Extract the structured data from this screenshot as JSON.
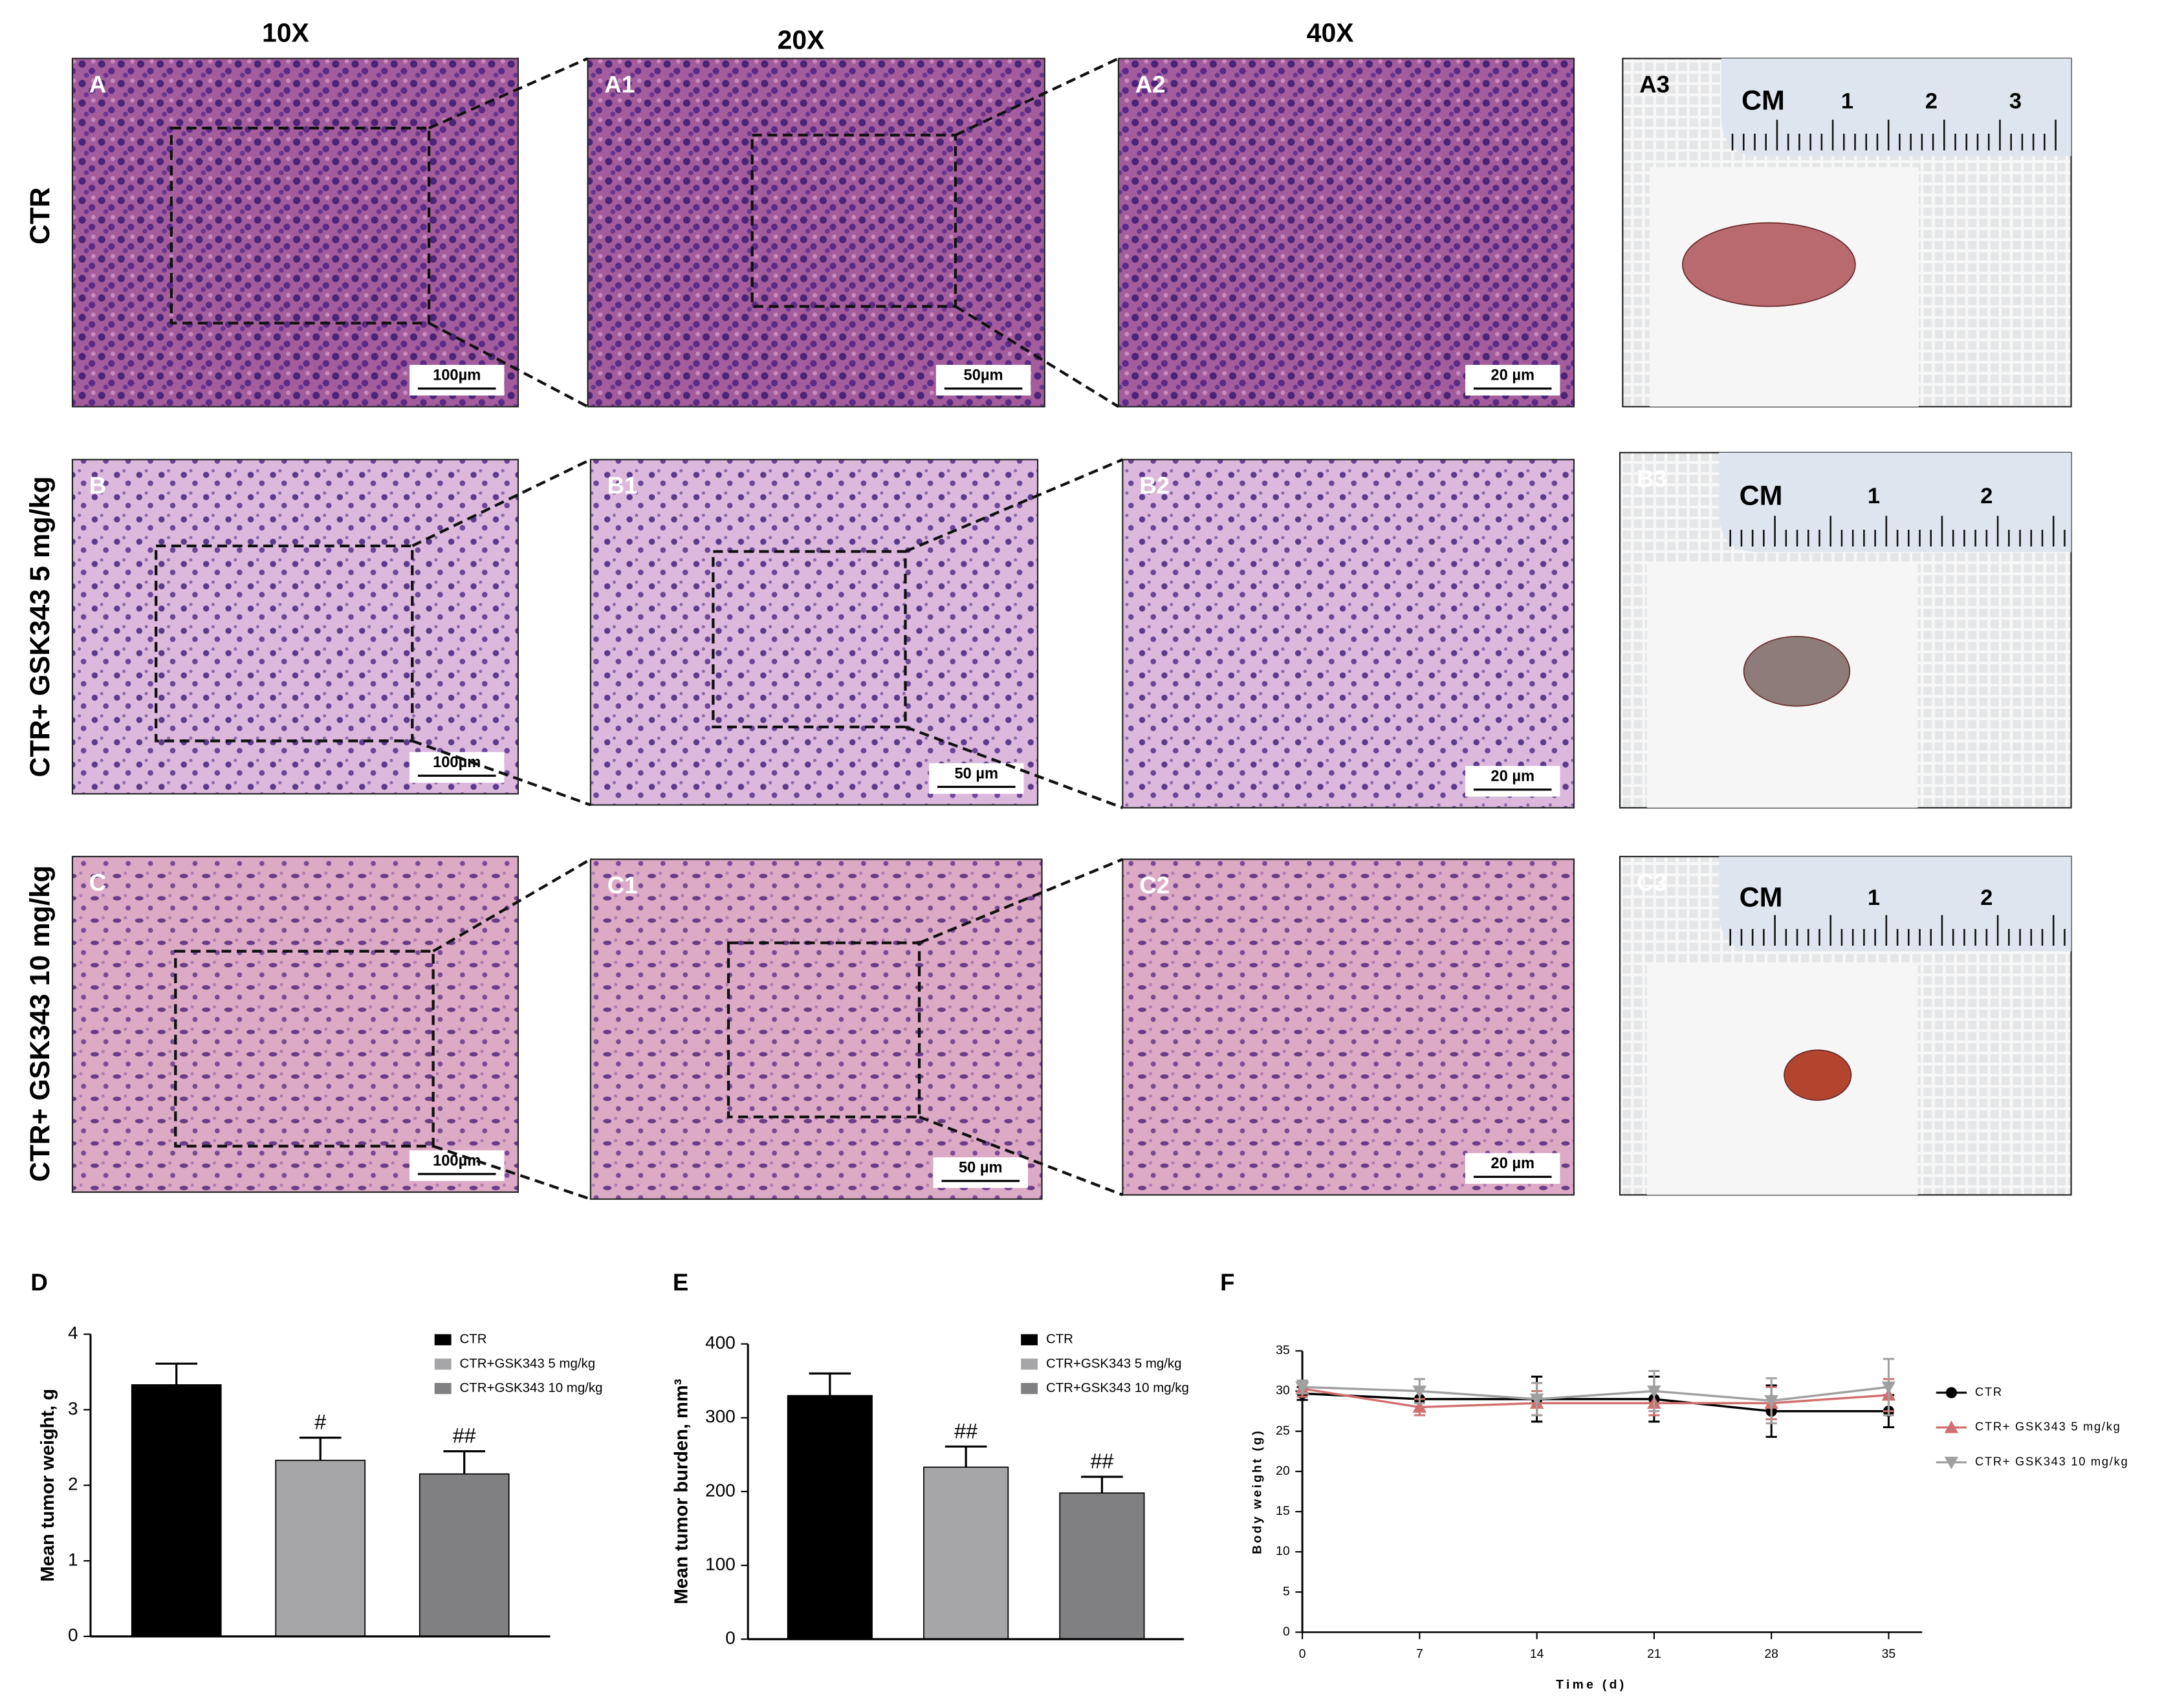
{
  "figure": {
    "column_headers": [
      "10X",
      "20X",
      "40X"
    ],
    "row_labels": [
      "CTR",
      "CTR+ GSK343 5 mg/kg",
      "CTR+ GSK343 10 mg/kg"
    ],
    "panels": [
      {
        "label": "A",
        "scale_bar": "100µm"
      },
      {
        "label": "A1",
        "scale_bar": "50µm"
      },
      {
        "label": "A2",
        "scale_bar": "20 µm"
      },
      {
        "label": "A3",
        "ruler": [
          "CM",
          "1",
          "2",
          "3"
        ]
      },
      {
        "label": "B",
        "scale_bar": "100µm"
      },
      {
        "label": "B1",
        "scale_bar": "50 µm"
      },
      {
        "label": "B2",
        "scale_bar": "20 µm"
      },
      {
        "label": "B3",
        "ruler": [
          "CM",
          "1",
          "2"
        ]
      },
      {
        "label": "C",
        "scale_bar": "100µm"
      },
      {
        "label": "C1",
        "scale_bar": "50 µm"
      },
      {
        "label": "C2",
        "scale_bar": "20 µm"
      },
      {
        "label": "C3",
        "ruler": [
          "CM",
          "1",
          "2"
        ]
      }
    ],
    "chart_letters": [
      "D",
      "E",
      "F"
    ]
  },
  "chart_data": [
    {
      "type": "bar",
      "y_label": "Mean tumor weight, g",
      "ylim": [
        0,
        4
      ],
      "yticks": [
        0,
        1,
        2,
        3,
        4
      ],
      "series": [
        {
          "name": "CTR",
          "color": "#000000",
          "values": [
            3.33
          ],
          "errors": [
            0.28
          ]
        },
        {
          "name": "CTR+GSK343  5 mg/kg",
          "color": "#a6a6a8",
          "values": [
            2.33
          ],
          "errors": [
            0.3
          ],
          "annotation": "#"
        },
        {
          "name": "CTR+GSK343 10 mg/kg",
          "color": "#808082",
          "values": [
            2.15
          ],
          "errors": [
            0.3
          ],
          "annotation": "##"
        }
      ]
    },
    {
      "type": "bar",
      "y_label": "Mean tumor burden, mm³",
      "ylim": [
        0,
        400
      ],
      "yticks": [
        0,
        100,
        200,
        300,
        400
      ],
      "series": [
        {
          "name": "CTR",
          "color": "#000000",
          "values": [
            330
          ],
          "errors": [
            30
          ]
        },
        {
          "name": "CTR+GSK343  5 mg/kg",
          "color": "#a6a6a8",
          "values": [
            233
          ],
          "errors": [
            28
          ],
          "annotation": "##"
        },
        {
          "name": "CTR+GSK343 10 mg/kg",
          "color": "#808082",
          "values": [
            198
          ],
          "errors": [
            22
          ],
          "annotation": "##"
        }
      ]
    },
    {
      "type": "line",
      "x_label": "Time (d)",
      "y_label": "Body weight (g)",
      "x": [
        0,
        7,
        14,
        21,
        28,
        35
      ],
      "xlim": [
        0,
        37
      ],
      "xticks": [
        0,
        7,
        14,
        21,
        28,
        35
      ],
      "ylim": [
        0,
        35
      ],
      "yticks": [
        0,
        5,
        10,
        15,
        20,
        25,
        30,
        35
      ],
      "series": [
        {
          "name": "CTR",
          "color": "#000000",
          "marker": "circle",
          "values": [
            29.7,
            29.0,
            29.0,
            29.0,
            27.5,
            27.5
          ],
          "errors": [
            0.8,
            1.5,
            2.8,
            2.8,
            3.2,
            2.0
          ]
        },
        {
          "name": "CTR+ GSK343 5 mg/kg",
          "color": "#d0706e",
          "marker": "triangle-up",
          "values": [
            30.3,
            28.0,
            28.5,
            28.5,
            28.5,
            29.5
          ],
          "errors": [
            1.0,
            1.0,
            1.5,
            1.5,
            2.0,
            2.0
          ]
        },
        {
          "name": "CTR+ GSK343 10 mg/kg",
          "color": "#a0a0a0",
          "marker": "triangle-down",
          "values": [
            30.5,
            30.0,
            29.0,
            30.0,
            28.8,
            30.5
          ],
          "errors": [
            0.8,
            1.5,
            2.0,
            2.5,
            2.8,
            3.5
          ]
        }
      ]
    }
  ]
}
